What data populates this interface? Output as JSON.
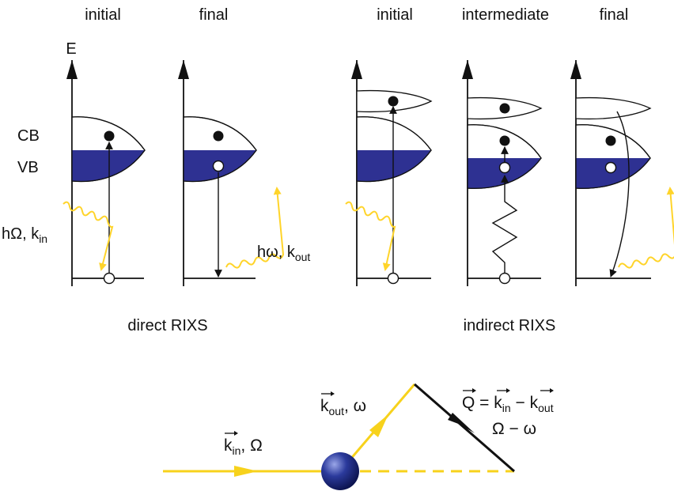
{
  "direct": {
    "initial_label": "initial",
    "final_label": "final",
    "energy_axis_label": "E",
    "cb_label": "CB",
    "vb_label": "VB",
    "photon_in_label": "hΩ, k",
    "photon_in_sub": "in",
    "photon_out_label": "hω, k",
    "photon_out_sub": "out",
    "caption": "direct RIXS"
  },
  "indirect": {
    "initial_label": "initial",
    "intermediate_label": "intermediate",
    "final_label": "final",
    "caption": "indirect RIXS"
  },
  "scattering": {
    "kin_label": "k",
    "kin_sub": "in",
    "kin_suffix": ", Ω",
    "kout_label": "k",
    "kout_sub": "out",
    "kout_suffix": ", ω",
    "q_label": "Q = k",
    "q_sub_in": "in",
    "q_minus": " − k",
    "q_sub_out": "out",
    "energy_transfer": "Ω − ω"
  },
  "colors": {
    "valence_band": "#2e3192",
    "photon": "#ffd42a",
    "beam": "#f7d21c",
    "sample_sphere": "#2b3a9c"
  }
}
